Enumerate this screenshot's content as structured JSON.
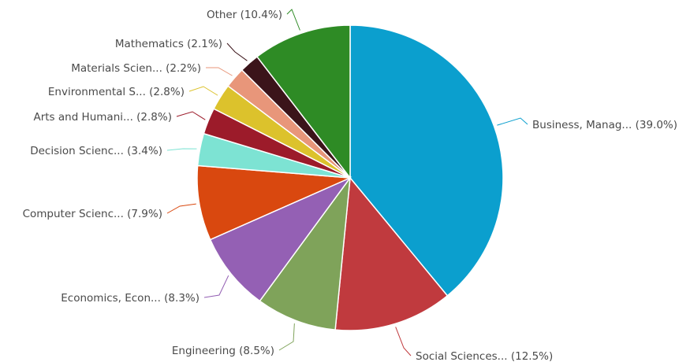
{
  "chart_data": {
    "type": "pie",
    "title": "",
    "slices": [
      {
        "label": "Business, Manag... (39.0%)",
        "value": 39.0,
        "color": "#0b9fce"
      },
      {
        "label": "Social Sciences... (12.5%)",
        "value": 12.5,
        "color": "#c03a3e"
      },
      {
        "label": "Engineering (8.5%)",
        "value": 8.5,
        "color": "#7fa35a"
      },
      {
        "label": "Economics, Econ... (8.3%)",
        "value": 8.3,
        "color": "#9460b4"
      },
      {
        "label": "Computer Scienc... (7.9%)",
        "value": 7.9,
        "color": "#d9480f"
      },
      {
        "label": "Decision Scienc... (3.4%)",
        "value": 3.4,
        "color": "#7de3d3"
      },
      {
        "label": "Arts and Humani... (2.8%)",
        "value": 2.8,
        "color": "#9c1b2a"
      },
      {
        "label": "Environmental S... (2.8%)",
        "value": 2.8,
        "color": "#dcc22c"
      },
      {
        "label": "Materials Scien... (2.2%)",
        "value": 2.2,
        "color": "#e8967a"
      },
      {
        "label": "Mathematics (2.1%)",
        "value": 2.1,
        "color": "#3b141a"
      },
      {
        "label": "Other (10.4%)",
        "value": 10.4,
        "color": "#2e8b25"
      }
    ],
    "start": "top",
    "direction": "clockwise",
    "legend": "none"
  }
}
